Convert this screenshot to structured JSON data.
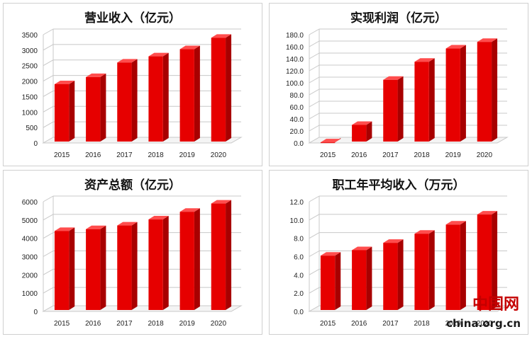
{
  "chart_data": [
    {
      "type": "bar",
      "title": "营业收入（亿元）",
      "categories": [
        "2015",
        "2016",
        "2017",
        "2018",
        "2019",
        "2020"
      ],
      "values": [
        1900,
        2130,
        2600,
        2800,
        3030,
        3400
      ],
      "ylim": [
        0,
        3500
      ],
      "yticks": [
        "0",
        "500",
        "1000",
        "1500",
        "2000",
        "2500",
        "3000",
        "3500"
      ],
      "ytick_values": [
        0,
        500,
        1000,
        1500,
        2000,
        2500,
        3000,
        3500
      ],
      "grid": true,
      "color": "#e60000"
    },
    {
      "type": "bar",
      "title": "实现利润（亿元）",
      "categories": [
        "2015",
        "2016",
        "2017",
        "2018",
        "2019",
        "2020"
      ],
      "values": [
        1,
        30,
        105,
        135,
        157,
        168
      ],
      "ylim": [
        0,
        180
      ],
      "yticks": [
        "0.0",
        "20.0",
        "40.0",
        "60.0",
        "80.0",
        "100.0",
        "120.0",
        "140.0",
        "160.0",
        "180.0"
      ],
      "ytick_values": [
        0,
        20,
        40,
        60,
        80,
        100,
        120,
        140,
        160,
        180
      ],
      "grid": true,
      "color": "#e60000"
    },
    {
      "type": "bar",
      "title": "资产总额（亿元）",
      "categories": [
        "2015",
        "2016",
        "2017",
        "2018",
        "2019",
        "2020"
      ],
      "values": [
        4400,
        4500,
        4700,
        5030,
        5450,
        5900
      ],
      "ylim": [
        0,
        6000
      ],
      "yticks": [
        "0",
        "1000",
        "2000",
        "3000",
        "4000",
        "5000",
        "6000"
      ],
      "ytick_values": [
        0,
        1000,
        2000,
        3000,
        4000,
        5000,
        6000
      ],
      "grid": true,
      "color": "#e60000"
    },
    {
      "type": "bar",
      "title": "职工年平均收入（万元）",
      "categories": [
        "2015",
        "2016",
        "2017",
        "2018",
        "2019",
        "2020"
      ],
      "values": [
        6.1,
        6.7,
        7.5,
        8.5,
        9.5,
        10.6
      ],
      "ylim": [
        0,
        12
      ],
      "yticks": [
        "0.0",
        "2.0",
        "4.0",
        "6.0",
        "8.0",
        "10.0",
        "12.0"
      ],
      "ytick_values": [
        0,
        2,
        4,
        6,
        8,
        10,
        12
      ],
      "grid": true,
      "color": "#e60000"
    }
  ],
  "watermark": {
    "domain": "china.org.cn",
    "logo_text": "中国网"
  }
}
